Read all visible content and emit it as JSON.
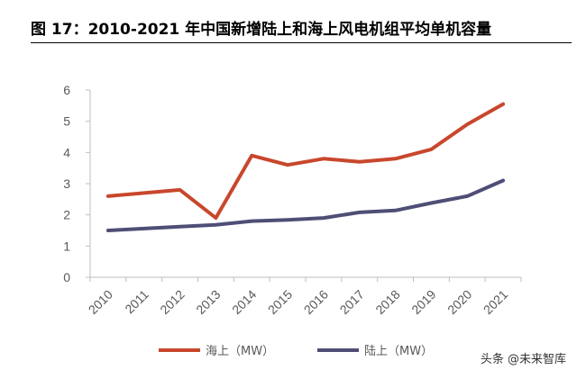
{
  "figure": {
    "title": "图 17：2010-2021 年中国新增陆上和海上风电机组平均单机容量"
  },
  "watermark": "头条 @未来智库",
  "colors": {
    "offshore": "#C8472C",
    "onshore": "#4E4E76",
    "axis": "#BFBFBF",
    "tick_text": "#595959"
  },
  "chart_data": {
    "type": "line",
    "x": [
      "2010",
      "2011",
      "2012",
      "2013",
      "2014",
      "2015",
      "2016",
      "2017",
      "2018",
      "2019",
      "2020",
      "2021"
    ],
    "ylim": [
      0,
      6
    ],
    "yticks": [
      "0",
      "1",
      "2",
      "3",
      "4",
      "5",
      "6"
    ],
    "grid": false,
    "legend": "bottom",
    "series": [
      {
        "name": "海上（MW）",
        "color": "#C8472C",
        "values": [
          2.6,
          2.7,
          2.8,
          1.9,
          3.9,
          3.6,
          3.8,
          3.7,
          3.8,
          4.1,
          4.9,
          5.55
        ]
      },
      {
        "name": "陆上（MW）",
        "color": "#4E4E76",
        "values": [
          1.5,
          1.56,
          1.62,
          1.68,
          1.8,
          1.84,
          1.9,
          2.08,
          2.14,
          2.38,
          2.6,
          3.1
        ]
      }
    ]
  }
}
